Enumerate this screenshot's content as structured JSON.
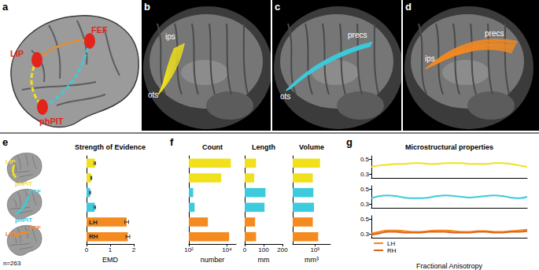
{
  "panel_labels": [
    "a",
    "b",
    "c",
    "d",
    "e",
    "f",
    "g"
  ],
  "diagram": {
    "region_color": "#e3241b",
    "regions": [
      {
        "label": "LIP"
      },
      {
        "label": "FEF"
      },
      {
        "label": "phPIT"
      }
    ],
    "tracts": [
      {
        "from": "LIP",
        "to": "phPIT",
        "color": "#f0e11c"
      },
      {
        "from": "FEF",
        "to": "phPIT",
        "color": "#3ccbdc"
      },
      {
        "from": "LIP",
        "to": "FEF",
        "color": "#f58a1f"
      }
    ]
  },
  "images": [
    {
      "color": "#f0e11c",
      "labels": [
        "ips",
        "ots"
      ]
    },
    {
      "color": "#3ccbdc",
      "labels": [
        "ots",
        "precs"
      ]
    },
    {
      "color": "#f58a1f",
      "labels": [
        "ips",
        "precs"
      ]
    }
  ],
  "tract_icons": [
    {
      "color": "#f0e11c",
      "labels": [
        "LIP",
        "phPIT"
      ]
    },
    {
      "color": "#3ccbdc",
      "labels": [
        "FEF",
        "phPIT"
      ]
    },
    {
      "color": "#f58a1f",
      "labels": [
        "LIP",
        "FEF"
      ]
    }
  ],
  "chart_data": [
    {
      "type": "bar",
      "orientation": "horizontal",
      "title": "Strength of Evidence",
      "xlabel": "EMD",
      "annotation": "n=263",
      "grid": false,
      "categories": [
        null,
        null,
        null,
        null,
        null,
        null
      ],
      "values": [
        0.35,
        0.2,
        0.15,
        0.35,
        1.7,
        1.75
      ],
      "errors": [
        0.03,
        0.02,
        0.02,
        0.03,
        0.08,
        0.08
      ],
      "bar_labels": [
        null,
        null,
        null,
        null,
        "LH",
        "RH"
      ],
      "colors": [
        "#f0e11c",
        "#f0e11c",
        "#3ccbdc",
        "#3ccbdc",
        "#f58a1f",
        "#f58a1f"
      ],
      "xlim": [
        0,
        2
      ],
      "xticks": [
        0,
        1,
        2
      ],
      "tick_labels": "x"
    },
    {
      "type": "bar",
      "orientation": "horizontal",
      "title": "Count",
      "xlabel": "number",
      "log": "x",
      "grid": false,
      "categories": [
        null,
        null,
        null,
        null,
        null,
        null
      ],
      "values": [
        16000,
        5000,
        170,
        200,
        1000,
        13000
      ],
      "colors": [
        "#f0e11c",
        "#f0e11c",
        "#3ccbdc",
        "#3ccbdc",
        "#f58a1f",
        "#f58a1f"
      ],
      "xlim": [
        100,
        30000
      ],
      "xticks": [
        {
          "value": 100,
          "label": "10²"
        },
        {
          "value": 10000,
          "label": "10⁴"
        }
      ],
      "tick_labels": "x"
    },
    {
      "type": "bar",
      "orientation": "horizontal",
      "title": "Length",
      "xlabel": "mm",
      "grid": false,
      "categories": [
        null,
        null,
        null,
        null,
        null,
        null
      ],
      "values": [
        60,
        50,
        110,
        105,
        55,
        60
      ],
      "colors": [
        "#f0e11c",
        "#f0e11c",
        "#3ccbdc",
        "#3ccbdc",
        "#f58a1f",
        "#f58a1f"
      ],
      "xlim": [
        0,
        200
      ],
      "xticks": [
        0,
        100,
        200
      ],
      "tick_labels": "x"
    },
    {
      "type": "bar",
      "orientation": "horizontal",
      "title": "Volume",
      "xlabel": "mm³",
      "log": "x",
      "grid": false,
      "categories": [
        null,
        null,
        null,
        null,
        null,
        null
      ],
      "values": [
        1700,
        800,
        850,
        900,
        800,
        1400
      ],
      "colors": [
        "#f0e11c",
        "#f0e11c",
        "#3ccbdc",
        "#3ccbdc",
        "#f58a1f",
        "#f58a1f"
      ],
      "xlim": [
        100,
        5000
      ],
      "xticks": [
        {
          "value": 1000,
          "label": "10³"
        }
      ],
      "tick_labels": "x"
    },
    {
      "type": "line",
      "title": "Microstructural properties",
      "xlabel": "Fractional Anisotropy",
      "grid": false,
      "legend": "lower left",
      "tick_labels": "y",
      "x": [
        1,
        2,
        3,
        4,
        5,
        6,
        7,
        8,
        9,
        10,
        11,
        12,
        13,
        14,
        15,
        16,
        17,
        18,
        19,
        20
      ],
      "xlim": [
        1,
        20
      ],
      "rows": [
        {
          "ylim": [
            0.25,
            0.55
          ],
          "yticks": [
            0.3,
            0.5
          ],
          "series": [
            {
              "color": "#f0e11c",
              "values": [
                0.4,
                0.42,
                0.43,
                0.44,
                0.44,
                0.45,
                0.45,
                0.44,
                0.44,
                0.45,
                0.45,
                0.45,
                0.44,
                0.44,
                0.44,
                0.45,
                0.45,
                0.44,
                0.42,
                0.4
              ]
            }
          ]
        },
        {
          "ylim": [
            0.25,
            0.55
          ],
          "yticks": [
            0.3,
            0.5
          ],
          "series": [
            {
              "color": "#3ccbdc",
              "values": [
                0.38,
                0.41,
                0.42,
                0.41,
                0.39,
                0.38,
                0.38,
                0.39,
                0.41,
                0.42,
                0.41,
                0.4,
                0.39,
                0.4,
                0.41,
                0.42,
                0.41,
                0.39,
                0.38,
                0.4
              ]
            }
          ]
        },
        {
          "ylim": [
            0.25,
            0.55
          ],
          "yticks": [
            0.3,
            0.5
          ],
          "series": [
            {
              "name": "LH",
              "color": "#f58a1f",
              "values": [
                0.31,
                0.33,
                0.35,
                0.35,
                0.34,
                0.33,
                0.33,
                0.34,
                0.35,
                0.35,
                0.34,
                0.33,
                0.33,
                0.34,
                0.34,
                0.33,
                0.33,
                0.34,
                0.35,
                0.36
              ]
            },
            {
              "name": "RH",
              "color": "#d9641a",
              "values": [
                0.29,
                0.31,
                0.33,
                0.33,
                0.32,
                0.32,
                0.32,
                0.33,
                0.33,
                0.33,
                0.32,
                0.32,
                0.32,
                0.33,
                0.33,
                0.32,
                0.32,
                0.33,
                0.33,
                0.34
              ]
            }
          ]
        }
      ]
    }
  ]
}
